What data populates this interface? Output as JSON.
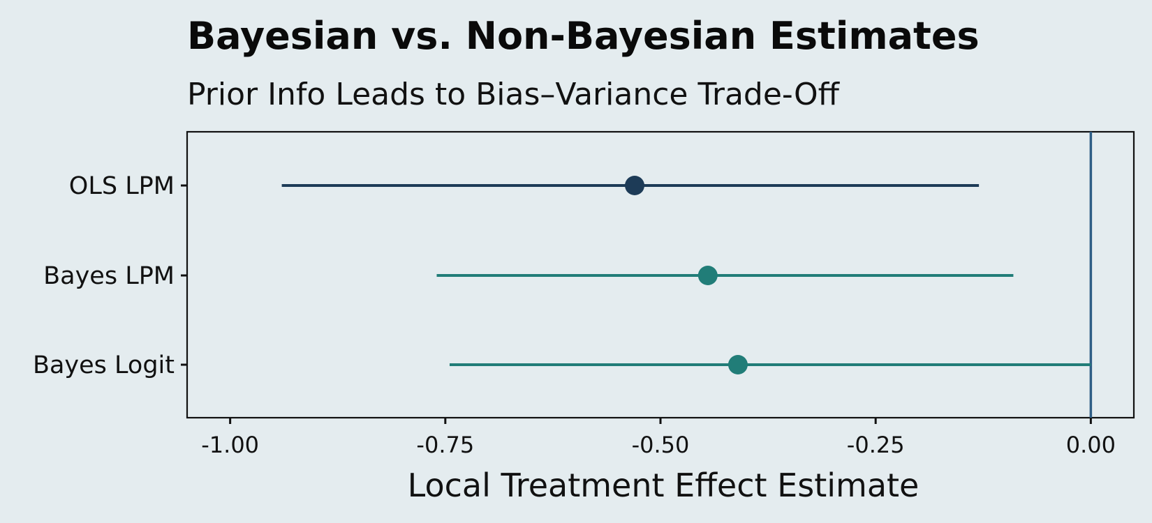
{
  "chart_data": {
    "type": "scatter",
    "title": "Bayesian vs. Non-Bayesian Estimates",
    "subtitle": "Prior Info Leads to Bias–Variance Trade-Off",
    "xlabel": "Local Treatment Effect Estimate",
    "ylabel": "",
    "xlim": [
      -1.05,
      0.05
    ],
    "x_ticks": [
      -1.0,
      -0.75,
      -0.5,
      -0.25,
      0.0
    ],
    "x_tick_labels": [
      "-1.00",
      "-0.75",
      "-0.50",
      "-0.25",
      "0.00"
    ],
    "reference_line_x": 0.0,
    "grid": false,
    "categories": [
      "OLS LPM",
      "Bayes LPM",
      "Bayes Logit"
    ],
    "series": [
      {
        "category": "OLS LPM",
        "estimate": -0.53,
        "lower": -0.94,
        "upper": -0.13,
        "color": "#1D3B57"
      },
      {
        "category": "Bayes LPM",
        "estimate": -0.445,
        "lower": -0.76,
        "upper": -0.09,
        "color": "#217D78"
      },
      {
        "category": "Bayes Logit",
        "estimate": -0.41,
        "lower": -0.745,
        "upper": 0.0,
        "color": "#217D78"
      }
    ],
    "colors": {
      "background": "#E4ECEF",
      "reference_line": "#2F5E86",
      "panel_border": "#111111"
    }
  }
}
